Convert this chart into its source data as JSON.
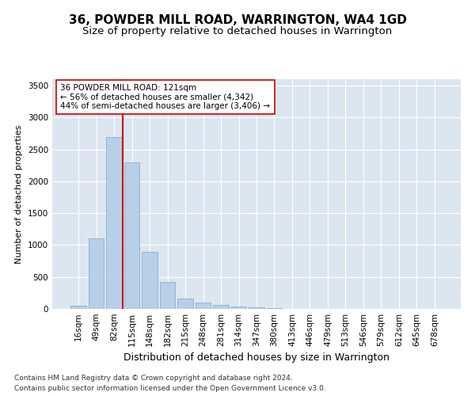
{
  "title": "36, POWDER MILL ROAD, WARRINGTON, WA4 1GD",
  "subtitle": "Size of property relative to detached houses in Warrington",
  "xlabel": "Distribution of detached houses by size in Warrington",
  "ylabel": "Number of detached properties",
  "categories": [
    "16sqm",
    "49sqm",
    "82sqm",
    "115sqm",
    "148sqm",
    "182sqm",
    "215sqm",
    "248sqm",
    "281sqm",
    "314sqm",
    "347sqm",
    "380sqm",
    "413sqm",
    "446sqm",
    "479sqm",
    "513sqm",
    "546sqm",
    "579sqm",
    "612sqm",
    "645sqm",
    "678sqm"
  ],
  "values": [
    50,
    1100,
    2700,
    2300,
    900,
    420,
    165,
    105,
    65,
    40,
    20,
    10,
    5,
    2,
    1,
    0,
    0,
    0,
    0,
    0,
    0
  ],
  "bar_color": "#b8cfe8",
  "bar_edge_color": "#7aa8cc",
  "vline_x_index": 2.5,
  "vline_color": "#cc0000",
  "annotation_line1": "36 POWDER MILL ROAD: 121sqm",
  "annotation_line2": "← 56% of detached houses are smaller (4,342)",
  "annotation_line3": "44% of semi-detached houses are larger (3,406) →",
  "annotation_box_color": "#ffffff",
  "annotation_box_edge": "#cc0000",
  "ylim": [
    0,
    3600
  ],
  "yticks": [
    0,
    500,
    1000,
    1500,
    2000,
    2500,
    3000,
    3500
  ],
  "background_color": "#dce6f0",
  "grid_color": "#ffffff",
  "footer1": "Contains HM Land Registry data © Crown copyright and database right 2024.",
  "footer2": "Contains public sector information licensed under the Open Government Licence v3.0.",
  "title_fontsize": 11,
  "subtitle_fontsize": 9.5,
  "xlabel_fontsize": 9,
  "ylabel_fontsize": 8,
  "tick_fontsize": 7.5,
  "footer_fontsize": 6.5
}
